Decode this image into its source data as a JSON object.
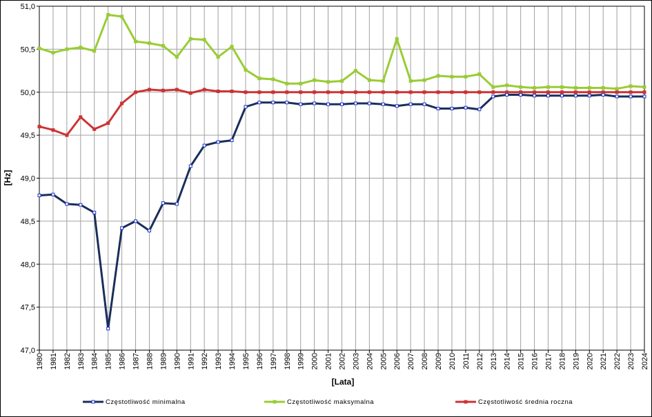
{
  "chart_data": {
    "type": "line",
    "xlabel": "[Lata]",
    "ylabel": "[Hz]",
    "ylim": [
      47.0,
      51.0
    ],
    "ytick_step": 0.5,
    "ytick_labels": [
      "47,0",
      "47,5",
      "48,0",
      "48,5",
      "49,0",
      "49,5",
      "50,0",
      "50,5",
      "51,0"
    ],
    "grid": true,
    "legend_position": "bottom",
    "x": [
      "1980",
      "1981",
      "1982",
      "1983",
      "1984",
      "1985",
      "1986",
      "1987",
      "1988",
      "1989",
      "1990",
      "1991",
      "1992",
      "1993",
      "1994",
      "1995",
      "1996",
      "1997",
      "1998",
      "1999",
      "2000",
      "2001",
      "2002",
      "2003",
      "2004",
      "2005",
      "2006",
      "2007",
      "2008",
      "2009",
      "2010",
      "2011",
      "2012",
      "2013",
      "2014",
      "2015",
      "2016",
      "2017",
      "2018",
      "2019",
      "2020",
      "2021",
      "2022",
      "2023",
      "2024"
    ],
    "series": [
      {
        "name": "Częstotliwość minimalna",
        "color": "#1a2e5a",
        "marker_fill": "#ffffff",
        "marker_stroke": "#1a33cc",
        "values": [
          48.8,
          48.81,
          48.7,
          48.69,
          48.6,
          47.25,
          48.42,
          48.5,
          48.39,
          48.71,
          48.7,
          49.14,
          49.38,
          49.42,
          49.44,
          49.83,
          49.88,
          49.88,
          49.88,
          49.86,
          49.87,
          49.86,
          49.86,
          49.87,
          49.87,
          49.86,
          49.84,
          49.86,
          49.86,
          49.81,
          49.81,
          49.82,
          49.8,
          49.95,
          49.97,
          49.97,
          49.96,
          49.96,
          49.96,
          49.96,
          49.96,
          49.97,
          49.95,
          49.95,
          49.95
        ]
      },
      {
        "name": "Częstotliwość maksymalna",
        "color": "#99cc33",
        "marker_fill": "#99cc33",
        "marker_stroke": "#99cc33",
        "values": [
          50.51,
          50.46,
          50.5,
          50.52,
          50.48,
          50.9,
          50.88,
          50.59,
          50.57,
          50.54,
          50.41,
          50.62,
          50.61,
          50.41,
          50.53,
          50.26,
          50.16,
          50.15,
          50.1,
          50.1,
          50.14,
          50.12,
          50.13,
          50.25,
          50.14,
          50.13,
          50.62,
          50.13,
          50.14,
          50.19,
          50.18,
          50.18,
          50.21,
          50.06,
          50.08,
          50.06,
          50.05,
          50.06,
          50.06,
          50.05,
          50.05,
          50.05,
          50.04,
          50.07,
          50.06
        ]
      },
      {
        "name": "Częstotliwość średnia roczna",
        "color": "#cc3333",
        "marker_fill": "#cc3333",
        "marker_stroke": "#cc3333",
        "values": [
          49.6,
          49.56,
          49.5,
          49.71,
          49.57,
          49.64,
          49.87,
          50.0,
          50.03,
          50.02,
          50.03,
          49.99,
          50.03,
          50.01,
          50.01,
          50.0,
          50.0,
          50.0,
          50.0,
          50.0,
          50.0,
          50.0,
          50.0,
          50.0,
          50.0,
          50.0,
          50.0,
          50.0,
          50.0,
          50.0,
          50.0,
          50.0,
          50.0,
          50.0,
          50.0,
          50.0,
          50.0,
          50.0,
          50.0,
          50.0,
          50.0,
          50.0,
          50.0,
          50.0,
          50.0
        ]
      }
    ]
  }
}
